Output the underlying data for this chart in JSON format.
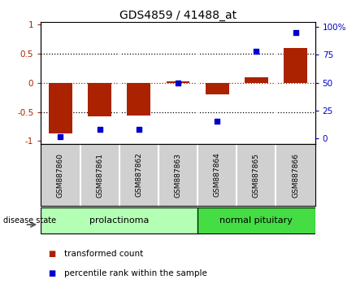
{
  "title": "GDS4859 / 41488_at",
  "samples": [
    "GSM887860",
    "GSM887861",
    "GSM887862",
    "GSM887863",
    "GSM887864",
    "GSM887865",
    "GSM887866"
  ],
  "transformed_count": [
    -0.87,
    -0.58,
    -0.56,
    0.02,
    -0.2,
    0.1,
    0.6
  ],
  "percentile_rank": [
    1,
    8,
    8,
    50,
    15,
    78,
    95
  ],
  "groups": [
    {
      "label": "prolactinoma",
      "start": 0,
      "end": 3,
      "color": "#b3ffb3"
    },
    {
      "label": "normal pituitary",
      "start": 4,
      "end": 6,
      "color": "#44dd44"
    }
  ],
  "bar_color": "#aa2200",
  "dot_color": "#0000cc",
  "left_yticks": [
    -1,
    -0.5,
    0,
    0.5,
    1
  ],
  "right_yticks": [
    0,
    25,
    50,
    75,
    100
  ],
  "ylim_left": [
    -1.05,
    1.05
  ],
  "ylim_right": [
    -5.25,
    105
  ],
  "dotted_lines_black": [
    -0.5,
    0.5
  ],
  "dotted_line_red": 0.0,
  "disease_state_label": "disease state",
  "legend_entries": [
    "transformed count",
    "percentile rank within the sample"
  ],
  "plot_bg_color": "#ffffff",
  "label_bg_color": "#d0d0d0",
  "bar_width": 0.6
}
